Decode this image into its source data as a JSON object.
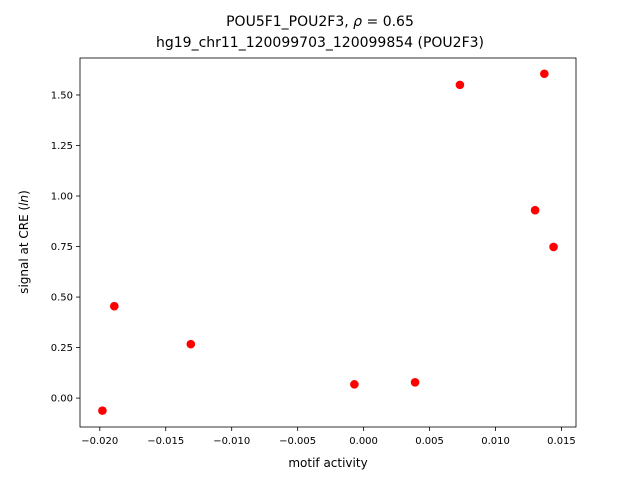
{
  "chart_data": {
    "type": "scatter",
    "title_line1_prefix": "POU5F1_POU2F3, ",
    "title_line1_rho": "ρ",
    "title_line1_suffix": " = 0.65",
    "title_line2": "hg19_chr11_120099703_120099854 (POU2F3)",
    "xlabel": "motif activity",
    "ylabel_prefix": "signal at CRE (",
    "ylabel_italic": "ln",
    "ylabel_suffix": ")",
    "xlim": [
      -0.0215,
      0.0161
    ],
    "ylim": [
      -0.143,
      1.683
    ],
    "x_ticks": [
      -0.02,
      -0.015,
      -0.01,
      -0.005,
      0.0,
      0.005,
      0.01,
      0.015
    ],
    "x_tick_labels": [
      "−0.020",
      "−0.015",
      "−0.010",
      "−0.005",
      "0.000",
      "0.005",
      "0.010",
      "0.015"
    ],
    "y_ticks": [
      0.0,
      0.25,
      0.5,
      0.75,
      1.0,
      1.25,
      1.5
    ],
    "y_tick_labels": [
      "0.00",
      "0.25",
      "0.50",
      "0.75",
      "1.00",
      "1.25",
      "1.50"
    ],
    "marker_color": "#ff0000",
    "grid": false,
    "points": [
      {
        "x": -0.0198,
        "y": -0.062
      },
      {
        "x": -0.0189,
        "y": 0.455
      },
      {
        "x": -0.0131,
        "y": 0.267
      },
      {
        "x": -0.0007,
        "y": 0.068
      },
      {
        "x": 0.0039,
        "y": 0.078
      },
      {
        "x": 0.0073,
        "y": 1.55
      },
      {
        "x": 0.013,
        "y": 0.93
      },
      {
        "x": 0.0137,
        "y": 1.605
      },
      {
        "x": 0.0144,
        "y": 0.748
      }
    ]
  }
}
